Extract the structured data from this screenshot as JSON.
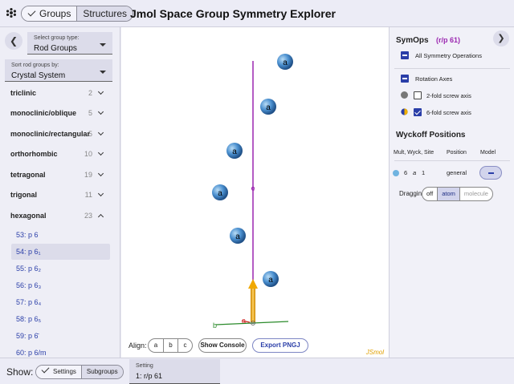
{
  "header": {
    "mode_toggle": [
      "Groups",
      "Structures"
    ],
    "title": "Jmol Space Group Symmetry Explorer"
  },
  "left_panel": {
    "back_icon": "chevron-left-icon",
    "group_type": {
      "label": "Select group type:",
      "value": "Rod Groups"
    },
    "sort_by": {
      "label": "Sort rod groups by:",
      "value": "Crystal System"
    },
    "systems": [
      {
        "name": "triclinic",
        "count": "2",
        "expanded": false
      },
      {
        "name": "monoclinic/oblique",
        "count": "5",
        "expanded": false
      },
      {
        "name": "monoclinic/rectangular",
        "count": "5",
        "expanded": false
      },
      {
        "name": "orthorhombic",
        "count": "10",
        "expanded": false
      },
      {
        "name": "tetragonal",
        "count": "19",
        "expanded": false
      },
      {
        "name": "trigonal",
        "count": "11",
        "expanded": false
      },
      {
        "name": "hexagonal",
        "count": "23",
        "expanded": true
      }
    ],
    "hexagonal_groups": [
      "53: p 6",
      "54: p 6₁",
      "55: p 6₂",
      "56: p 6₃",
      "57: p 6₄",
      "58: p 6₅",
      "59: p 6̄",
      "60: p 6/m"
    ],
    "selected_group_index": 1
  },
  "viewer": {
    "atom_label": "a",
    "axis_labels": {
      "a": "a",
      "b": "b",
      "c": "c"
    },
    "align_label": "Align:",
    "align_options": [
      "a",
      "b",
      "c"
    ],
    "show_console": "Show Console",
    "export_pngj": "Export PNGJ",
    "jsmol_brand": "JSmol",
    "colors": {
      "axis_line": "#9b27b0",
      "atom": "#3a7fc0",
      "arrow": "#f0a800",
      "b_axis": "#2a8a2a",
      "a_axis": "#d02020"
    }
  },
  "right_panel": {
    "symops_title": "SymOps",
    "symops_group": "(r/p 61)",
    "forward_icon": "chevron-right-icon",
    "all_ops": "All Symmetry Operations",
    "rotation_axes": "Rotation Axes",
    "axes": [
      {
        "label": "2-fold screw axis",
        "checked": false,
        "icon": "gray-circle-icon"
      },
      {
        "label": "6-fold screw axis",
        "checked": true,
        "icon": "hexad-screw-icon"
      }
    ],
    "wyckoff_title": "Wyckoff Positions",
    "wyckoff_headers": [
      "Mult, Wyck, Site",
      "Position",
      "Model"
    ],
    "wyckoff_row": {
      "mult": "6",
      "wyck": "a",
      "site": "1",
      "position": "general"
    },
    "dragging_label": "Dragging:",
    "dragging_options": [
      "off",
      "atom",
      "molecule"
    ],
    "dragging_selected": "atom"
  },
  "footer": {
    "show_label": "Show:",
    "show_options": [
      "Settings",
      "Subgroups"
    ],
    "setting": {
      "label": "Setting",
      "value": "1: r/p 61"
    }
  }
}
